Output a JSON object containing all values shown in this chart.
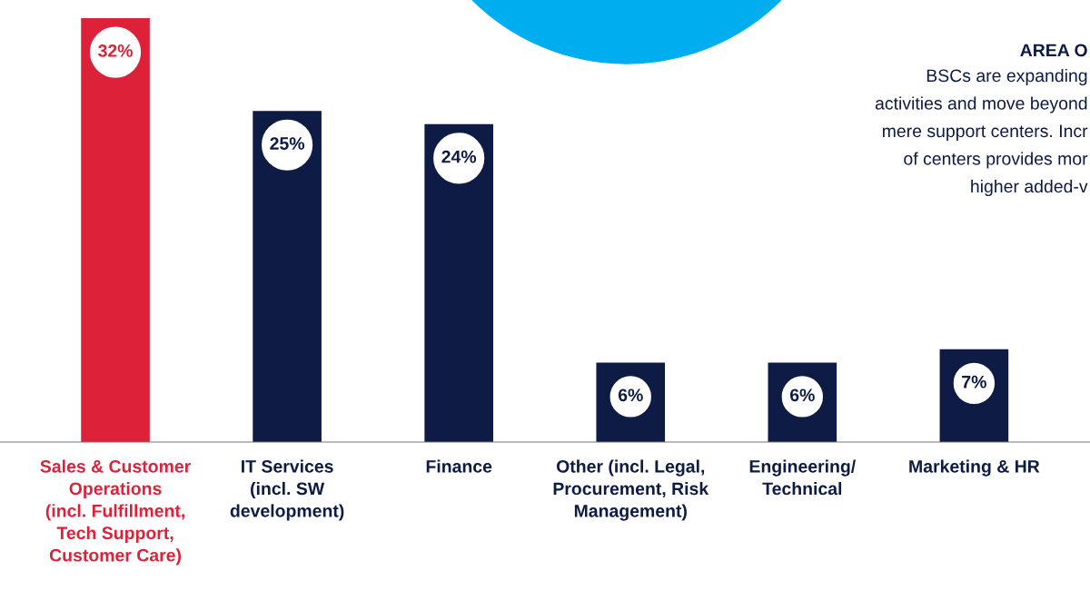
{
  "chart_data": {
    "type": "bar",
    "categories": [
      "Sales & Customer\nOperations\n(incl. Fulfillment,\nTech Support,\nCustomer Care)",
      "IT Services\n(incl. SW\ndevelopment)",
      "Finance",
      "Other (incl. Legal,\nProcurement, Risk\nManagement)",
      "Engineering/\nTechnical",
      "Marketing & HR"
    ],
    "values": [
      32,
      25,
      24,
      6,
      6,
      7
    ],
    "colors": [
      "#dc2139",
      "#0d1b45",
      "#0d1b45",
      "#0d1b45",
      "#0d1b45",
      "#0d1b45"
    ],
    "value_labels": [
      "32%",
      "25%",
      "24%",
      "6%",
      "6%",
      "7%"
    ],
    "annotations": [
      "AREA O",
      "BSCs are expanding",
      "activities and move beyond",
      "mere support centers. Incr",
      "of centers provides mor",
      "higher added-v"
    ],
    "grid": false,
    "legend": false
  }
}
